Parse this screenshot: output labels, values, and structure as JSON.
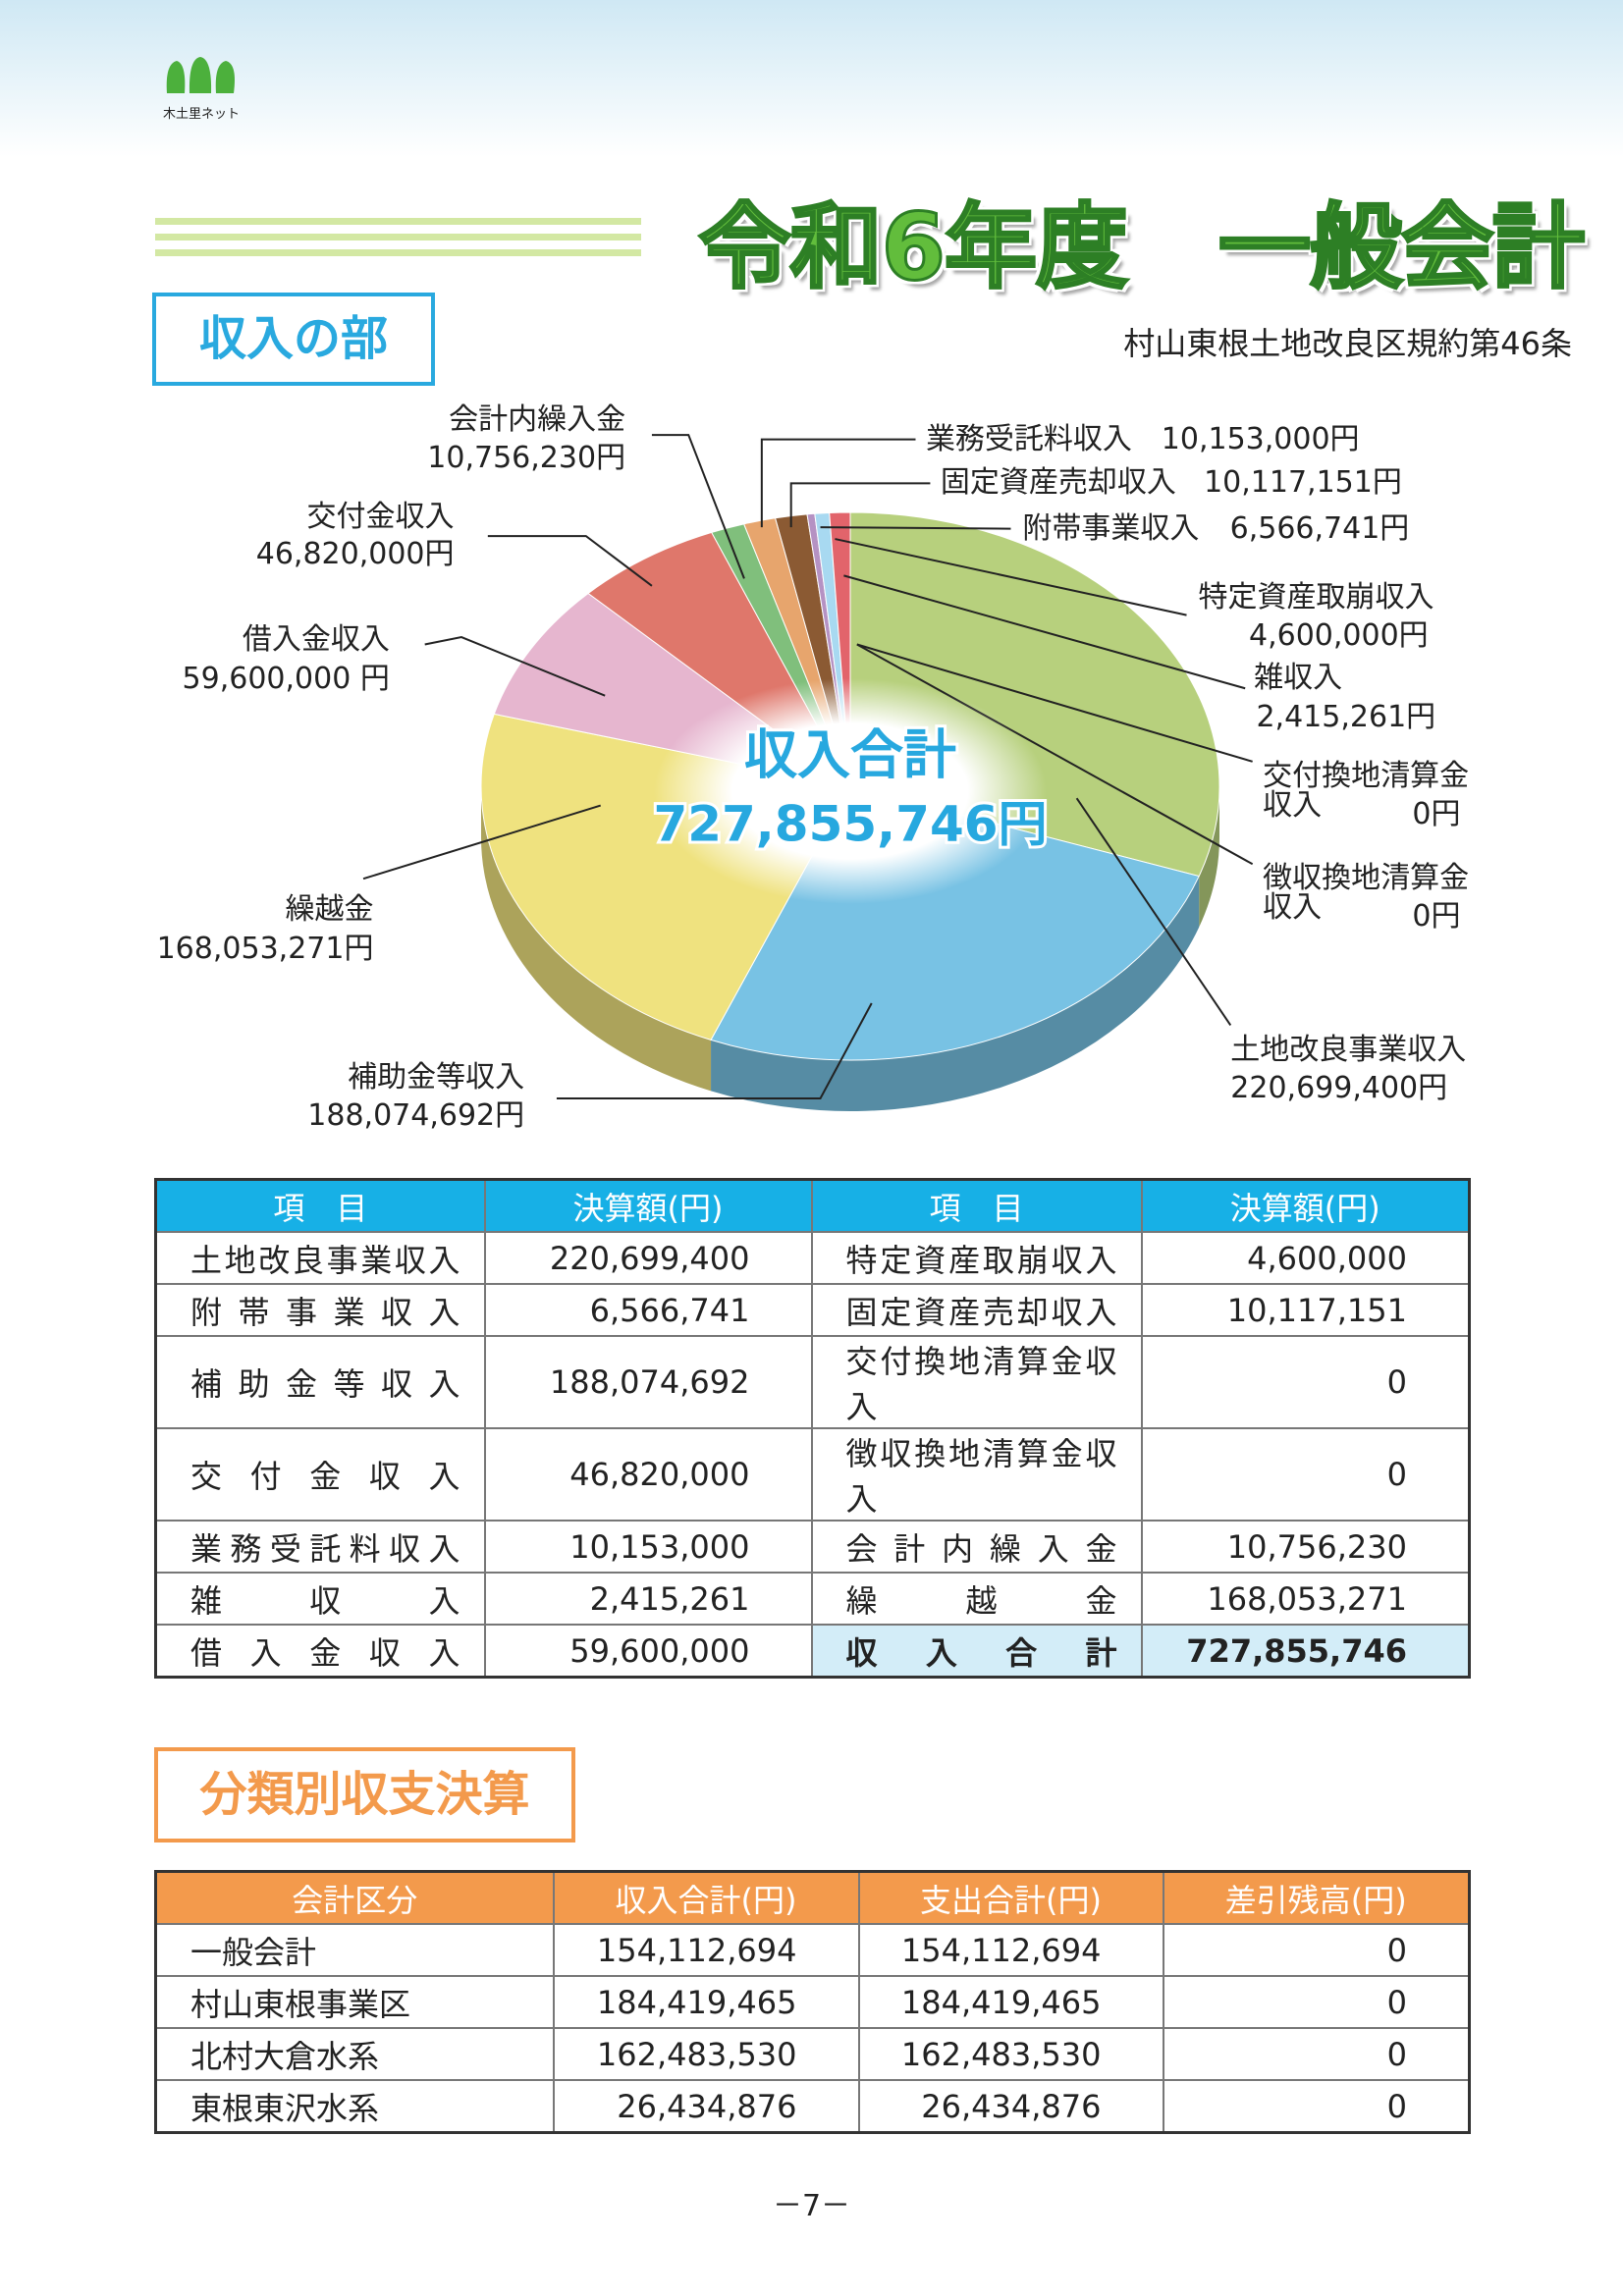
{
  "header": {
    "logo_text": "木土里ネット",
    "title": "令和6年度　一般会計"
  },
  "revenue_section": {
    "heading": "収入の部",
    "note": "村山東根土地改良区規約第46条"
  },
  "chart_data": {
    "type": "pie",
    "categories": [
      "土地改良事業収入",
      "補助金等収入",
      "繰越金",
      "借入金収入",
      "交付金収入",
      "会計内繰入金",
      "業務受託料収入",
      "固定資産売却収入",
      "雑収入",
      "特定資産取崩収入",
      "附帯事業収入",
      "交付換地清算金収入",
      "徴収換地清算金収入"
    ],
    "values": [
      220699400,
      188074692,
      168053271,
      59600000,
      46820000,
      10756230,
      10153000,
      10117151,
      2415261,
      4600000,
      6566741,
      0,
      0
    ],
    "value_labels": [
      "220,699,400円",
      "188,074,692円",
      "168,053,271円",
      "59,600,000 円",
      "46,820,000円",
      "10,756,230円",
      "10,153,000円",
      "10,117,151円",
      "2,415,261円",
      "4,600,000円",
      "6,566,741円",
      "0円",
      "0円"
    ],
    "colors": [
      "#b7d07d",
      "#78c2e4",
      "#efe27f",
      "#e6b6cf",
      "#df776b",
      "#80bf7c",
      "#e7a56d",
      "#8b5a33",
      "#b592c3",
      "#a8d9f1",
      "#e2646b",
      "#cccccc",
      "#cccccc"
    ],
    "center_label": "収入合計",
    "total_label": "727,855,746円"
  },
  "revenue_table": {
    "header": [
      "項　目",
      "決算額(円)",
      "項　目",
      "決算額(円)"
    ],
    "rows": [
      [
        "土地改良事業収入",
        "220,699,400",
        "特定資産取崩収入",
        "4,600,000"
      ],
      [
        "附帯事業収入",
        "6,566,741",
        "固定資産売却収入",
        "10,117,151"
      ],
      [
        "補助金等収入",
        "188,074,692",
        "交付換地清算金収入",
        "0"
      ],
      [
        "交付金収入",
        "46,820,000",
        "徴収換地清算金収入",
        "0"
      ],
      [
        "業務受託料収入",
        "10,153,000",
        "会計内繰入金",
        "10,756,230"
      ],
      [
        "雑収入",
        "2,415,261",
        "繰越金",
        "168,053,271"
      ],
      [
        "借入金収入",
        "59,600,000",
        "収入合計",
        "727,855,746"
      ]
    ]
  },
  "classification_section": {
    "heading": "分類別収支決算"
  },
  "classification_table": {
    "header": [
      "会計区分",
      "収入合計(円)",
      "支出合計(円)",
      "差引残高(円)"
    ],
    "rows": [
      [
        "一般会計",
        "154,112,694",
        "154,112,694",
        "0"
      ],
      [
        "村山東根事業区",
        "184,419,465",
        "184,419,465",
        "0"
      ],
      [
        "北村大倉水系",
        "162,483,530",
        "162,483,530",
        "0"
      ],
      [
        "東根東沢水系",
        "26,434,876",
        "26,434,876",
        "0"
      ]
    ]
  },
  "footer": {
    "page_number": "－7－"
  }
}
